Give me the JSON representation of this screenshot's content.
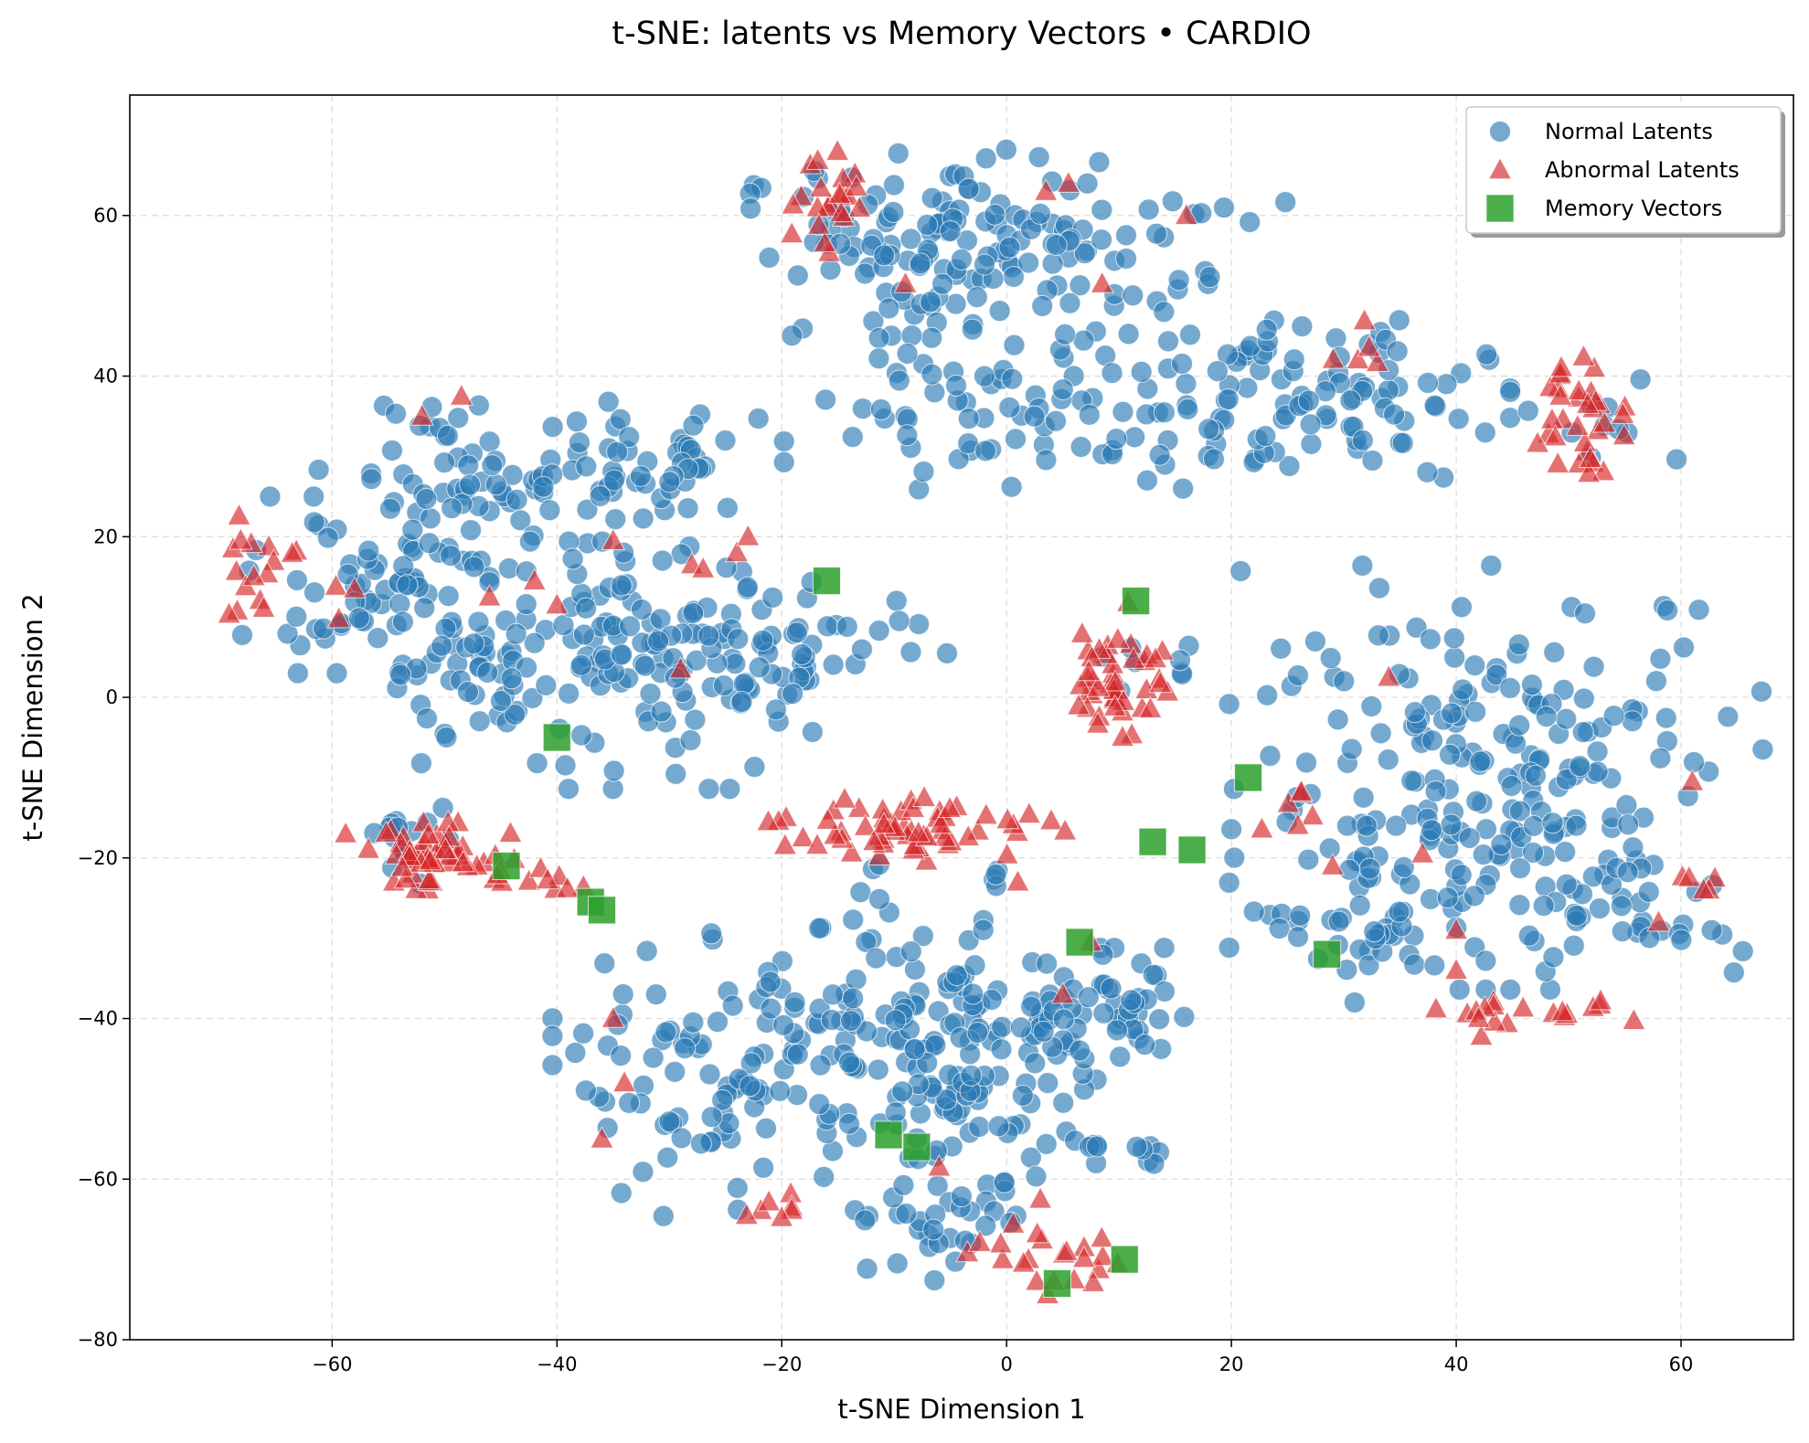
{
  "chart_data": {
    "type": "scatter",
    "title": "t-SNE: latents vs Memory Vectors • CARDIO",
    "xlabel": "t-SNE Dimension 1",
    "ylabel": "t-SNE Dimension 2",
    "xlim": [
      -78,
      70
    ],
    "ylim": [
      -80,
      75
    ],
    "xticks": [
      -60,
      -40,
      -20,
      0,
      20,
      40,
      60
    ],
    "yticks": [
      -80,
      -60,
      -40,
      -20,
      0,
      20,
      40,
      60
    ],
    "xtick_labels": [
      "−60",
      "−40",
      "−20",
      "0",
      "20",
      "40",
      "60"
    ],
    "ytick_labels": [
      "−80",
      "−60",
      "−40",
      "−20",
      "0",
      "20",
      "40",
      "60"
    ],
    "grid": true,
    "legend_position": "top-right",
    "series": [
      {
        "name": "Normal Latents",
        "marker": "circle",
        "color": "#2c7bb6",
        "clusters": [
          {
            "cx": -8,
            "cy": 55,
            "sx": 8,
            "sy": 6,
            "n": 90
          },
          {
            "cx": 5,
            "cy": 57,
            "sx": 9,
            "sy": 4,
            "n": 70
          },
          {
            "cx": 0,
            "cy": 38,
            "sx": 8,
            "sy": 6,
            "n": 70
          },
          {
            "cx": 25,
            "cy": 37,
            "sx": 9,
            "sy": 5,
            "n": 110
          },
          {
            "cx": 53,
            "cy": 33,
            "sx": 3,
            "sy": 3,
            "n": 10
          },
          {
            "cx": -48,
            "cy": 28,
            "sx": 6,
            "sy": 5,
            "n": 60
          },
          {
            "cx": -33,
            "cy": 28,
            "sx": 6,
            "sy": 4,
            "n": 50
          },
          {
            "cx": -57,
            "cy": 14,
            "sx": 5,
            "sy": 5,
            "n": 60
          },
          {
            "cx": -45,
            "cy": 5,
            "sx": 6,
            "sy": 6,
            "n": 70
          },
          {
            "cx": -32,
            "cy": 4,
            "sx": 7,
            "sy": 7,
            "n": 110
          },
          {
            "cx": -18,
            "cy": 6,
            "sx": 6,
            "sy": 4,
            "n": 40
          },
          {
            "cx": 44,
            "cy": -10,
            "sx": 11,
            "sy": 12,
            "n": 230
          },
          {
            "cx": 33,
            "cy": -27,
            "sx": 5,
            "sy": 5,
            "n": 40
          },
          {
            "cx": 54,
            "cy": -26,
            "sx": 4,
            "sy": 3,
            "n": 25
          },
          {
            "cx": -25,
            "cy": -47,
            "sx": 7,
            "sy": 8,
            "n": 100
          },
          {
            "cx": -10,
            "cy": -40,
            "sx": 6,
            "sy": 6,
            "n": 70
          },
          {
            "cx": -3,
            "cy": -50,
            "sx": 5,
            "sy": 7,
            "n": 90
          },
          {
            "cx": 8,
            "cy": -40,
            "sx": 5,
            "sy": 4,
            "n": 60
          },
          {
            "cx": -6,
            "cy": -66,
            "sx": 3,
            "sy": 3,
            "n": 25
          },
          {
            "cx": 10,
            "cy": -57,
            "sx": 3,
            "sy": 1.5,
            "n": 10
          },
          {
            "cx": -54,
            "cy": -18,
            "sx": 2,
            "sy": 3,
            "n": 15
          },
          {
            "cx": 14,
            "cy": 3,
            "sx": 3,
            "sy": 2,
            "n": 8
          },
          {
            "cx": 0,
            "cy": -23,
            "sx": 1,
            "sy": 1,
            "n": 4
          },
          {
            "cx": -12,
            "cy": -24,
            "sx": 1,
            "sy": 2,
            "n": 5
          }
        ]
      },
      {
        "name": "Abnormal Latents",
        "marker": "triangle",
        "color": "#d62728",
        "clusters": [
          {
            "cx": -17,
            "cy": 62,
            "sx": 2,
            "sy": 4,
            "n": 22
          },
          {
            "cx": -66,
            "cy": 16,
            "sx": 3,
            "sy": 3,
            "n": 18
          },
          {
            "cx": -50,
            "cy": -20,
            "sx": 4,
            "sy": 2,
            "n": 55
          },
          {
            "cx": -42,
            "cy": -23,
            "sx": 2,
            "sy": 1,
            "n": 8
          },
          {
            "cx": -8,
            "cy": -16,
            "sx": 6,
            "sy": 2,
            "n": 60
          },
          {
            "cx": 10,
            "cy": 3,
            "sx": 2,
            "sy": 4,
            "n": 45
          },
          {
            "cx": 51,
            "cy": 36,
            "sx": 3,
            "sy": 3,
            "n": 28
          },
          {
            "cx": 52,
            "cy": 29,
            "sx": 1.5,
            "sy": 1,
            "n": 6
          },
          {
            "cx": 47,
            "cy": -40,
            "sx": 4,
            "sy": 1,
            "n": 18
          },
          {
            "cx": 5,
            "cy": -70,
            "sx": 4,
            "sy": 2,
            "n": 22
          },
          {
            "cx": -21,
            "cy": -64,
            "sx": 2,
            "sy": 1,
            "n": 7
          },
          {
            "cx": 25,
            "cy": -14,
            "sx": 1.5,
            "sy": 2,
            "n": 6
          },
          {
            "cx": 32,
            "cy": 44,
            "sx": 1.5,
            "sy": 2,
            "n": 5
          },
          {
            "cx": 62,
            "cy": -24,
            "sx": 1,
            "sy": 1,
            "n": 4
          }
        ],
        "points": [
          [
            -35,
            19.5
          ],
          [
            -42,
            14.5
          ],
          [
            -40,
            11.5
          ],
          [
            -46,
            12.5
          ],
          [
            -58,
            13.5
          ],
          [
            -28,
            16.5
          ],
          [
            -27,
            16
          ],
          [
            -24,
            18
          ],
          [
            -23,
            20
          ],
          [
            -29,
            3.5
          ],
          [
            -52,
            35
          ],
          [
            -48.5,
            37.5
          ],
          [
            16,
            60
          ],
          [
            3.5,
            63
          ],
          [
            5.5,
            64
          ],
          [
            -9,
            51.5
          ],
          [
            8.5,
            51.5
          ],
          [
            -35,
            -40
          ],
          [
            -34,
            -48
          ],
          [
            -36,
            -55
          ],
          [
            -6,
            -58.5
          ],
          [
            5,
            -37
          ],
          [
            7.5,
            -30.5
          ],
          [
            3,
            -62.5
          ],
          [
            1,
            -23
          ],
          [
            34,
            2.5
          ],
          [
            37,
            -19.5
          ],
          [
            29,
            -21
          ],
          [
            40,
            -29
          ],
          [
            42,
            -40
          ],
          [
            58,
            -28
          ],
          [
            61,
            -10.5
          ],
          [
            62,
            -24
          ],
          [
            40,
            -34
          ]
        ]
      },
      {
        "name": "Memory Vectors",
        "marker": "square",
        "color": "#2ca02c",
        "points": [
          [
            -16,
            14.5
          ],
          [
            11.5,
            12
          ],
          [
            -40,
            -5
          ],
          [
            -44.5,
            -21
          ],
          [
            -37,
            -25.5
          ],
          [
            -36,
            -26.5
          ],
          [
            21.5,
            -10
          ],
          [
            13,
            -18
          ],
          [
            16.5,
            -19
          ],
          [
            28.5,
            -32
          ],
          [
            6.5,
            -30.5
          ],
          [
            -10.5,
            -54.5
          ],
          [
            -8,
            -56
          ],
          [
            10.5,
            -70
          ],
          [
            4.5,
            -73
          ]
        ]
      }
    ]
  }
}
